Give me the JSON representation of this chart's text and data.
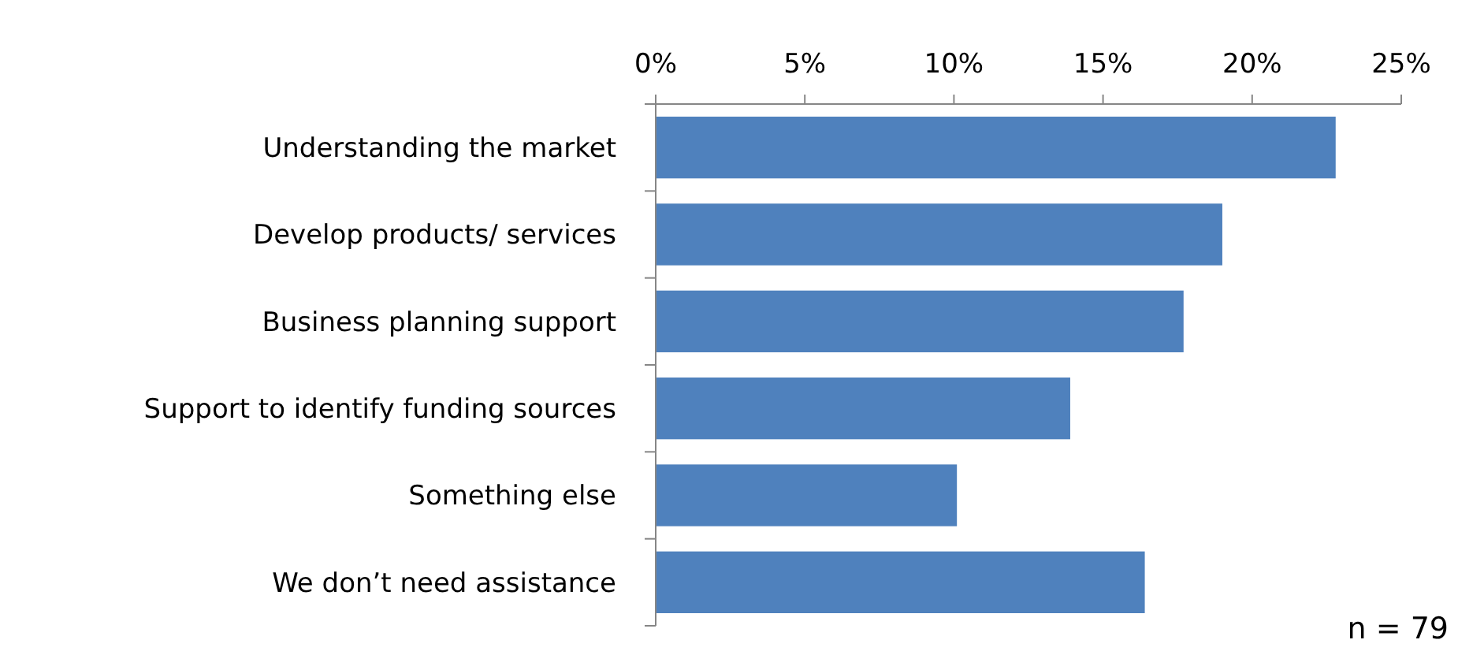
{
  "chart_data": {
    "type": "bar",
    "orientation": "horizontal",
    "categories": [
      "Understanding the market",
      "Develop products/ services",
      "Business planning support",
      "Support to identify funding sources",
      "Something else",
      "We don’t need assistance"
    ],
    "values": [
      22.8,
      19.0,
      17.7,
      13.9,
      10.1,
      16.4
    ],
    "color": "#4f81bd",
    "xlim": [
      0,
      25
    ],
    "xticks": [
      {
        "value": 0,
        "label": "0%"
      },
      {
        "value": 5,
        "label": "5%"
      },
      {
        "value": 10,
        "label": "10%"
      },
      {
        "value": 15,
        "label": "15%"
      },
      {
        "value": 20,
        "label": "20%"
      },
      {
        "value": 25,
        "label": "25%"
      }
    ],
    "grid": false,
    "annotations": [
      "n = 79"
    ]
  }
}
